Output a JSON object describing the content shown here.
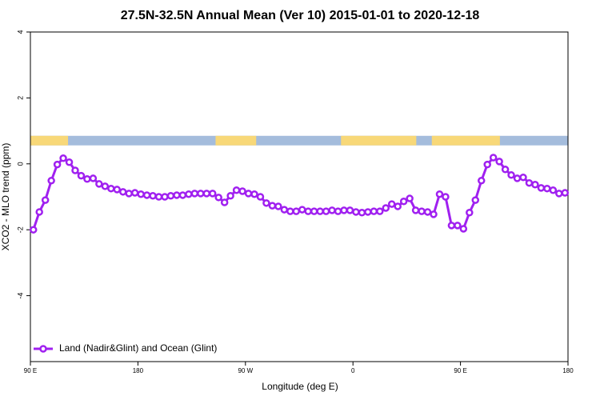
{
  "chart_data": {
    "type": "line",
    "title": "27.5N-32.5N Annual Mean (Ver 10)   2015-01-01 to 2020-12-18",
    "x_label": "Longitude (deg E)",
    "y_label": "XCO2 - MLO trend (ppm)",
    "xlim": [
      90,
      540
    ],
    "xticks": [
      {
        "value": 90,
        "label": "90 E"
      },
      {
        "value": 180,
        "label": "180"
      },
      {
        "value": 270,
        "label": "90 W"
      },
      {
        "value": 360,
        "label": "0"
      },
      {
        "value": 450,
        "label": "90 E"
      },
      {
        "value": 540,
        "label": "180"
      }
    ],
    "ylim": [
      -6,
      4
    ],
    "yticks": [
      -4,
      -2,
      0,
      2,
      4
    ],
    "legend_position": "bottom-left",
    "surface_strip": {
      "y_range": [
        0.56,
        0.85
      ],
      "ocean_color": "#a4bcdc",
      "land_color": "#f8d878",
      "land_ranges": [
        [
          90,
          121.5
        ],
        [
          245,
          279
        ],
        [
          350,
          413
        ],
        [
          426,
          483
        ]
      ]
    },
    "x": [
      92.5,
      97.5,
      102.5,
      107.5,
      112.5,
      117.5,
      122.5,
      127.5,
      132.5,
      137.5,
      142.5,
      147.5,
      152.5,
      157.5,
      162.5,
      167.5,
      172.5,
      177.5,
      182.5,
      187.5,
      192.5,
      197.5,
      202.5,
      207.5,
      212.5,
      217.5,
      222.5,
      227.5,
      232.5,
      237.5,
      242.5,
      247.5,
      252.5,
      257.5,
      262.5,
      267.5,
      272.5,
      277.5,
      282.5,
      287.5,
      292.5,
      297.5,
      302.5,
      307.5,
      312.5,
      317.5,
      322.5,
      327.5,
      332.5,
      337.5,
      342.5,
      347.5,
      352.5,
      357.5,
      362.5,
      367.5,
      372.5,
      377.5,
      382.5,
      387.5,
      392.5,
      397.5,
      402.5,
      407.5,
      412.5,
      417.5,
      422.5,
      427.5,
      432.5,
      437.5,
      442.5,
      447.5,
      452.5,
      457.5,
      462.5,
      467.5,
      472.5,
      477.5,
      482.5,
      487.5,
      492.5,
      497.5,
      502.5,
      507.5,
      512.5,
      517.5,
      522.5,
      527.5,
      532.5,
      537.5
    ],
    "series": [
      {
        "name": "Land (Nadir&Glint) and Ocean (Glint)",
        "color": "#a020f0",
        "values": [
          -2.0,
          -1.46,
          -1.1,
          -0.51,
          -0.02,
          0.17,
          0.05,
          -0.2,
          -0.36,
          -0.46,
          -0.44,
          -0.61,
          -0.68,
          -0.75,
          -0.78,
          -0.85,
          -0.9,
          -0.88,
          -0.92,
          -0.95,
          -0.97,
          -1.0,
          -1.0,
          -0.97,
          -0.95,
          -0.95,
          -0.92,
          -0.9,
          -0.9,
          -0.9,
          -0.9,
          -1.02,
          -1.17,
          -0.97,
          -0.8,
          -0.83,
          -0.9,
          -0.92,
          -1.0,
          -1.19,
          -1.27,
          -1.29,
          -1.39,
          -1.44,
          -1.44,
          -1.39,
          -1.44,
          -1.44,
          -1.44,
          -1.44,
          -1.41,
          -1.44,
          -1.41,
          -1.41,
          -1.46,
          -1.48,
          -1.46,
          -1.44,
          -1.44,
          -1.34,
          -1.22,
          -1.29,
          -1.14,
          -1.05,
          -1.41,
          -1.44,
          -1.46,
          -1.53,
          -0.92,
          -1.0,
          -1.87,
          -1.87,
          -1.97,
          -1.48,
          -1.1,
          -0.51,
          -0.02,
          0.19,
          0.07,
          -0.17,
          -0.34,
          -0.44,
          -0.41,
          -0.58,
          -0.63,
          -0.73,
          -0.75,
          -0.8,
          -0.9,
          -0.88
        ]
      }
    ]
  }
}
